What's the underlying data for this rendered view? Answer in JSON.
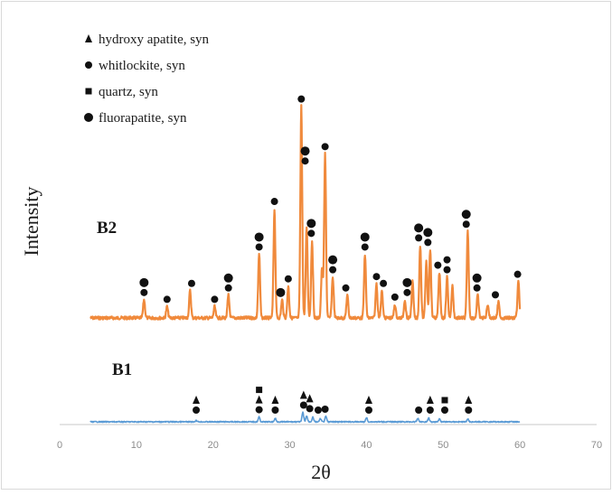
{
  "chart_data": {
    "type": "line",
    "title": "",
    "xlabel": "2θ",
    "ylabel": "Intensity",
    "xlim": [
      0,
      70
    ],
    "x_ticks": [
      0,
      10,
      20,
      30,
      40,
      50,
      60,
      70
    ],
    "x_tick_labels": [
      "0",
      "10",
      "20",
      "30",
      "40",
      "50",
      "60",
      "70"
    ],
    "grid": false,
    "legend_position": "top-left",
    "legend": [
      {
        "marker": "triangle",
        "label": "hydroxy apatite, syn"
      },
      {
        "marker": "circle",
        "label": "whitlockite, syn"
      },
      {
        "marker": "square",
        "label": "quartz, syn"
      },
      {
        "marker": "circle-large",
        "label": "fluorapatite, syn"
      }
    ],
    "series": [
      {
        "label": "B2",
        "color": "#f08a3c",
        "x_range": [
          4,
          60
        ],
        "peaks": [
          {
            "x": 11.0,
            "h": 0.08
          },
          {
            "x": 14.0,
            "h": 0.05
          },
          {
            "x": 17.0,
            "h": 0.12
          },
          {
            "x": 20.2,
            "h": 0.05
          },
          {
            "x": 22.0,
            "h": 0.1
          },
          {
            "x": 26.0,
            "h": 0.28
          },
          {
            "x": 28.0,
            "h": 0.48
          },
          {
            "x": 29.0,
            "h": 0.08
          },
          {
            "x": 29.8,
            "h": 0.14
          },
          {
            "x": 31.5,
            "h": 0.93
          },
          {
            "x": 32.2,
            "h": 0.4
          },
          {
            "x": 32.9,
            "h": 0.34
          },
          {
            "x": 34.2,
            "h": 0.22
          },
          {
            "x": 34.6,
            "h": 0.72
          },
          {
            "x": 35.6,
            "h": 0.18
          },
          {
            "x": 37.5,
            "h": 0.1
          },
          {
            "x": 39.8,
            "h": 0.28
          },
          {
            "x": 41.3,
            "h": 0.15
          },
          {
            "x": 42.0,
            "h": 0.12
          },
          {
            "x": 43.7,
            "h": 0.06
          },
          {
            "x": 45.0,
            "h": 0.08
          },
          {
            "x": 46.0,
            "h": 0.16
          },
          {
            "x": 47.0,
            "h": 0.32
          },
          {
            "x": 47.8,
            "h": 0.25
          },
          {
            "x": 48.3,
            "h": 0.3
          },
          {
            "x": 49.5,
            "h": 0.2
          },
          {
            "x": 50.5,
            "h": 0.18
          },
          {
            "x": 51.2,
            "h": 0.14
          },
          {
            "x": 53.2,
            "h": 0.38
          },
          {
            "x": 54.5,
            "h": 0.1
          },
          {
            "x": 55.8,
            "h": 0.06
          },
          {
            "x": 57.2,
            "h": 0.07
          },
          {
            "x": 59.8,
            "h": 0.16
          }
        ]
      },
      {
        "label": "B1",
        "color": "#5b9bd5",
        "x_range": [
          4,
          60
        ],
        "peaks": [
          {
            "x": 17.8,
            "h": 0.05
          },
          {
            "x": 26.0,
            "h": 0.18
          },
          {
            "x": 28.1,
            "h": 0.13
          },
          {
            "x": 31.7,
            "h": 0.35
          },
          {
            "x": 32.2,
            "h": 0.22
          },
          {
            "x": 33.0,
            "h": 0.18
          },
          {
            "x": 34.0,
            "h": 0.12
          },
          {
            "x": 34.7,
            "h": 0.2
          },
          {
            "x": 40.0,
            "h": 0.15
          },
          {
            "x": 46.7,
            "h": 0.13
          },
          {
            "x": 48.1,
            "h": 0.14
          },
          {
            "x": 49.5,
            "h": 0.11
          },
          {
            "x": 53.2,
            "h": 0.11
          }
        ]
      }
    ],
    "annotations_B2": [
      {
        "x": 11.0,
        "markers": [
          "circle-large",
          "circle"
        ]
      },
      {
        "x": 14.0,
        "markers": [
          "circle"
        ]
      },
      {
        "x": 17.2,
        "markers": [
          "circle"
        ]
      },
      {
        "x": 20.2,
        "markers": [
          "circle"
        ]
      },
      {
        "x": 22.0,
        "markers": [
          "circle-large",
          "circle"
        ]
      },
      {
        "x": 26.0,
        "markers": [
          "circle-large",
          "circle"
        ]
      },
      {
        "x": 28.0,
        "markers": [
          "circle"
        ]
      },
      {
        "x": 28.8,
        "markers": [
          "circle-large"
        ]
      },
      {
        "x": 29.8,
        "markers": [
          "circle"
        ]
      },
      {
        "x": 31.5,
        "markers": [
          "circle"
        ]
      },
      {
        "x": 32.0,
        "markers": [
          "circle-large",
          "circle"
        ]
      },
      {
        "x": 32.8,
        "markers": [
          "circle-large",
          "circle"
        ]
      },
      {
        "x": 34.6,
        "markers": [
          "circle"
        ]
      },
      {
        "x": 35.6,
        "markers": [
          "circle-large",
          "circle"
        ]
      },
      {
        "x": 37.3,
        "markers": [
          "circle"
        ]
      },
      {
        "x": 39.8,
        "markers": [
          "circle-large",
          "circle"
        ]
      },
      {
        "x": 41.3,
        "markers": [
          "circle"
        ]
      },
      {
        "x": 42.2,
        "markers": [
          "circle"
        ]
      },
      {
        "x": 43.7,
        "markers": [
          "circle"
        ]
      },
      {
        "x": 45.3,
        "markers": [
          "circle-large",
          "circle"
        ]
      },
      {
        "x": 46.8,
        "markers": [
          "circle-large",
          "circle"
        ]
      },
      {
        "x": 48.0,
        "markers": [
          "circle-large",
          "circle"
        ]
      },
      {
        "x": 49.3,
        "markers": [
          "circle"
        ]
      },
      {
        "x": 50.5,
        "markers": [
          "circle",
          "circle"
        ]
      },
      {
        "x": 53.0,
        "markers": [
          "circle-large",
          "circle"
        ]
      },
      {
        "x": 54.4,
        "markers": [
          "circle-large",
          "circle"
        ]
      },
      {
        "x": 56.8,
        "markers": [
          "circle"
        ]
      },
      {
        "x": 59.7,
        "markers": [
          "circle"
        ]
      }
    ],
    "annotations_B1": [
      {
        "x": 17.8,
        "markers": [
          "triangle",
          "circle"
        ]
      },
      {
        "x": 26.0,
        "markers": [
          "square",
          "triangle",
          "circle"
        ]
      },
      {
        "x": 28.1,
        "markers": [
          "triangle",
          "circle"
        ]
      },
      {
        "x": 31.8,
        "markers": [
          "triangle",
          "circle"
        ]
      },
      {
        "x": 32.6,
        "markers": [
          "triangle",
          "circle"
        ]
      },
      {
        "x": 33.7,
        "markers": [
          "circle"
        ]
      },
      {
        "x": 34.6,
        "markers": [
          "circle"
        ]
      },
      {
        "x": 40.3,
        "markers": [
          "triangle",
          "circle"
        ]
      },
      {
        "x": 46.8,
        "markers": [
          "circle"
        ]
      },
      {
        "x": 48.3,
        "markers": [
          "triangle",
          "circle"
        ]
      },
      {
        "x": 50.2,
        "markers": [
          "square",
          "circle"
        ]
      },
      {
        "x": 53.3,
        "markers": [
          "triangle",
          "circle"
        ]
      }
    ]
  }
}
